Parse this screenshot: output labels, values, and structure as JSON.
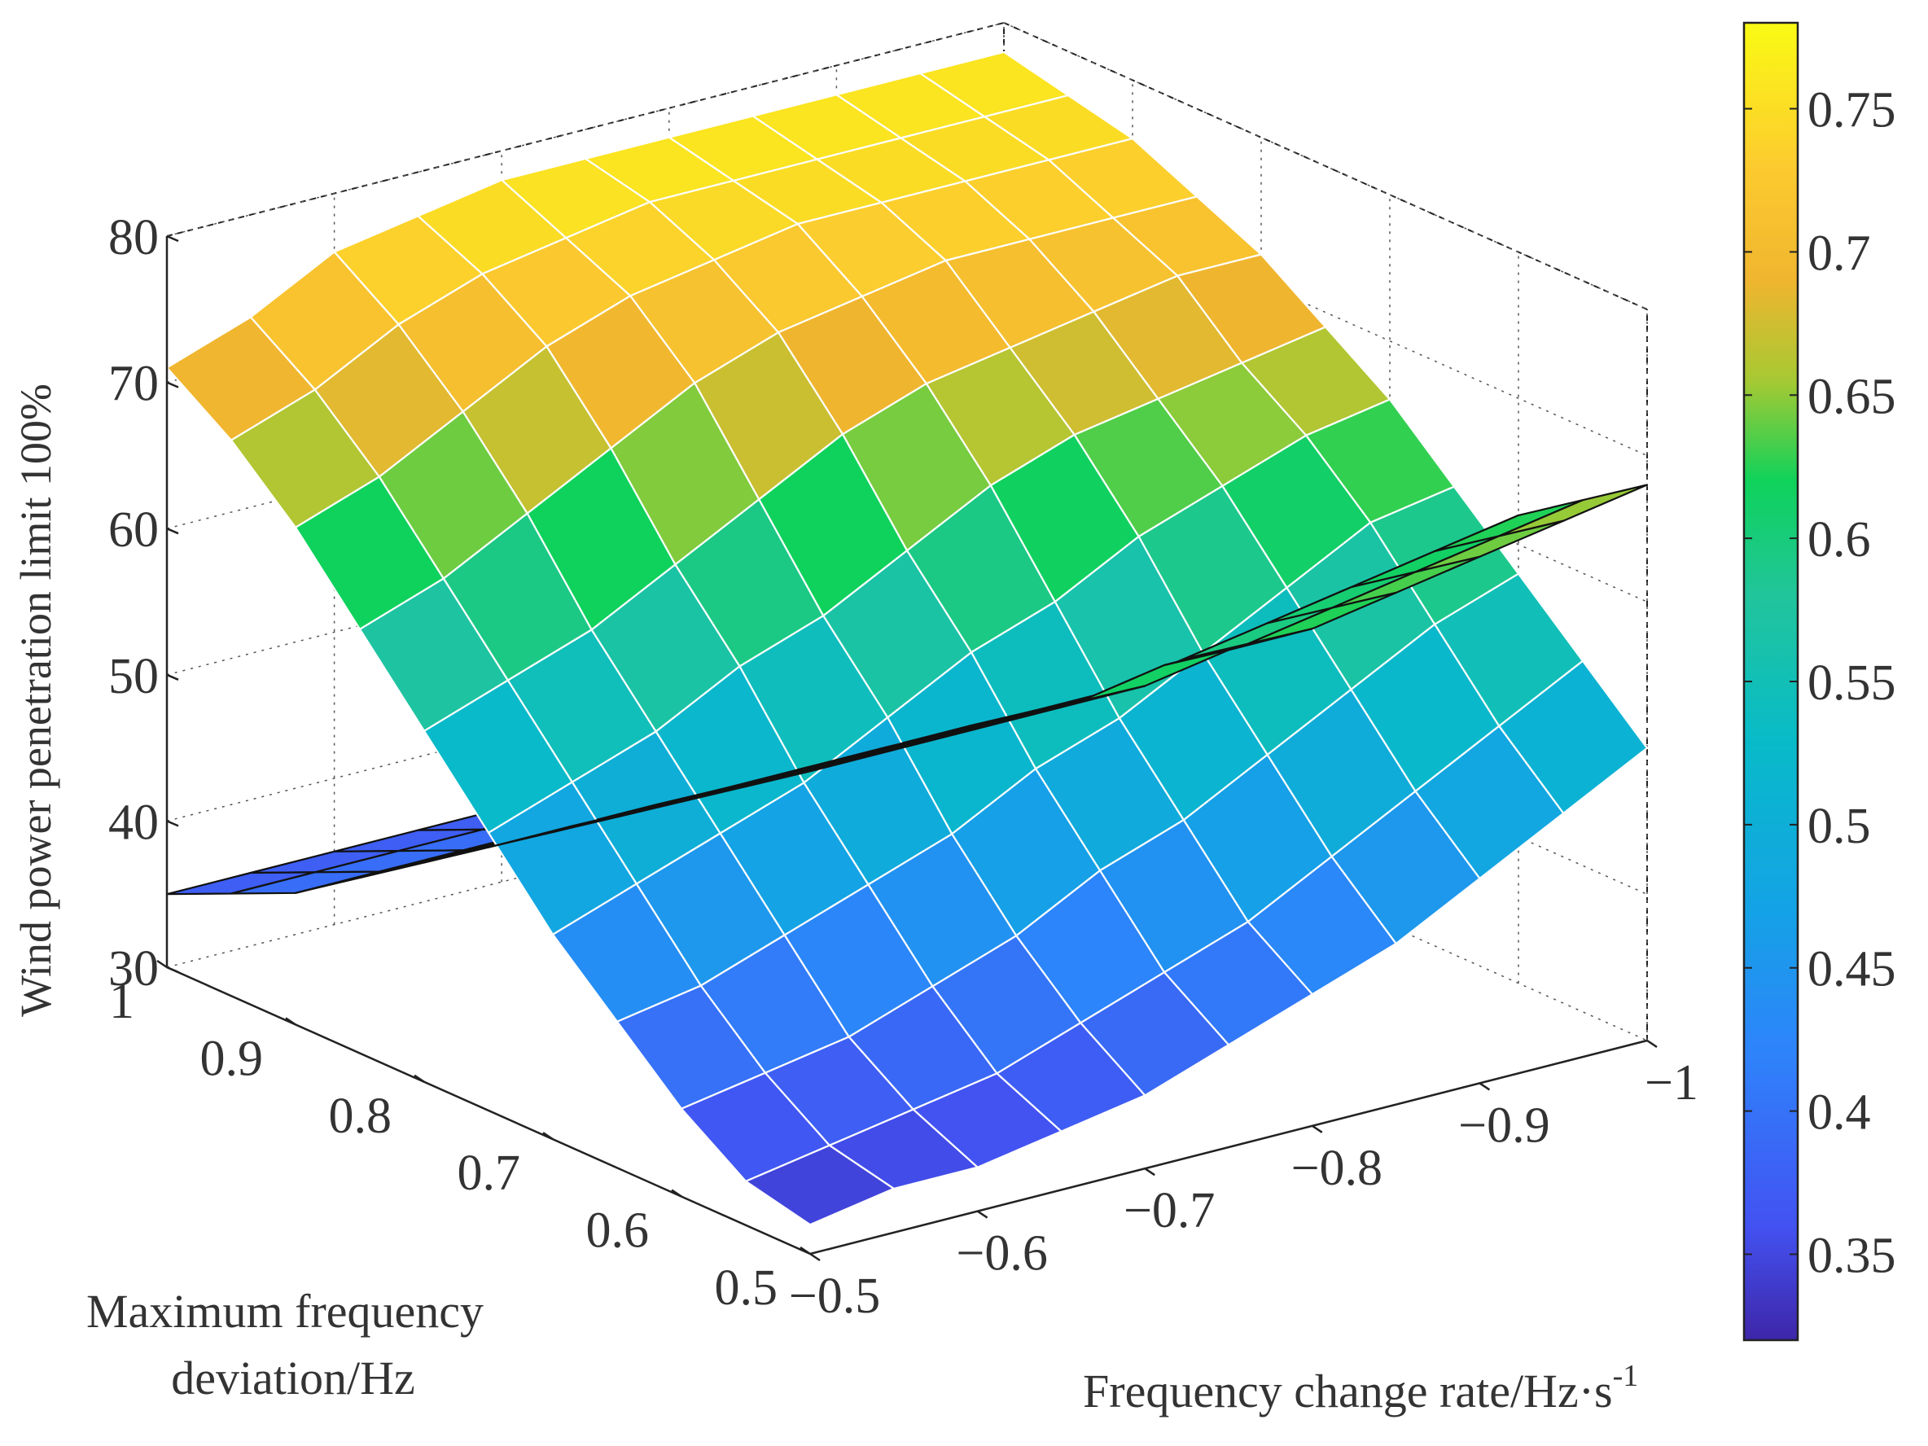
{
  "chart_data": [
    {
      "type": "surface3d",
      "name": "upper-surface",
      "description_series": "upper surface (white/black grid)",
      "x_values": [
        -1,
        -0.95,
        -0.9,
        -0.85,
        -0.8,
        -0.75,
        -0.7,
        -0.65,
        -0.6,
        -0.55,
        -0.5
      ],
      "y_values": [
        1,
        0.95,
        0.9,
        0.85,
        0.8,
        0.75,
        0.7,
        0.65,
        0.6,
        0.55,
        0.5
      ],
      "z_rows": [
        [
          78,
          78,
          78,
          78,
          78,
          78,
          78,
          77,
          76,
          73,
          71
        ],
        [
          77,
          77,
          77,
          77,
          77,
          77,
          76,
          75,
          73,
          70,
          68
        ],
        [
          76,
          76,
          76,
          76,
          76,
          75,
          74,
          72,
          69,
          66,
          64
        ],
        [
          74,
          74,
          74,
          74,
          73,
          72,
          70,
          67,
          64,
          61,
          59
        ],
        [
          72,
          72,
          71,
          70,
          69,
          67,
          64,
          61,
          58,
          56,
          54
        ],
        [
          69,
          68,
          67,
          66,
          64,
          61,
          58,
          56,
          53,
          51,
          49
        ],
        [
          66,
          65,
          63,
          61,
          58,
          56,
          53,
          50,
          48,
          46,
          44
        ],
        [
          62,
          61,
          58,
          55,
          52,
          50,
          47,
          45,
          43,
          41,
          40
        ],
        [
          58,
          56,
          53,
          50,
          47,
          45,
          42,
          40,
          38,
          37,
          36
        ],
        [
          54,
          51,
          48,
          45,
          42,
          40,
          38,
          36,
          35,
          34,
          33
        ],
        [
          50,
          47,
          44,
          41,
          39,
          37,
          35,
          34,
          33,
          33,
          32
        ]
      ]
    },
    {
      "type": "surface3d",
      "name": "lower-surface",
      "x_values": [
        -1,
        -0.95,
        -0.9,
        -0.85,
        -0.8,
        -0.75,
        -0.7,
        -0.65,
        -0.6,
        -0.55,
        -0.5
      ],
      "y_values": [
        1,
        0.95,
        0.9,
        0.85,
        0.8,
        0.75,
        0.7,
        0.65,
        0.6,
        0.55,
        0.5
      ],
      "z_rows": [
        [
          37,
          36,
          36,
          35,
          35,
          35,
          35,
          35,
          35,
          35,
          35
        ],
        [
          39,
          38,
          37,
          37,
          37,
          37,
          37,
          37,
          37,
          37,
          37
        ],
        [
          42,
          41,
          40,
          40,
          39,
          39,
          39,
          39,
          39,
          39,
          39
        ],
        [
          45,
          44,
          43,
          42,
          42,
          42,
          42,
          42,
          42,
          42,
          42
        ],
        [
          48,
          47,
          46,
          45,
          45,
          45,
          45,
          45,
          45,
          45,
          45
        ],
        [
          51,
          50,
          49,
          48,
          48,
          48,
          48,
          48,
          48,
          48,
          48
        ],
        [
          55,
          54,
          53,
          52,
          51,
          51,
          51,
          51,
          51,
          51,
          51
        ],
        [
          58,
          57,
          56,
          55,
          54,
          54,
          54,
          54,
          54,
          54,
          54
        ],
        [
          62,
          61,
          60,
          59,
          58,
          57,
          57,
          57,
          57,
          57,
          57
        ],
        [
          65,
          64,
          63,
          62,
          61,
          61,
          60,
          60,
          60,
          60,
          60
        ],
        [
          68,
          67,
          66,
          65,
          64,
          64,
          63,
          63,
          63,
          63,
          63
        ]
      ]
    }
  ],
  "axes": {
    "x": {
      "label_main": "Frequency change rate/Hz·s",
      "label_sup": "-1",
      "range": [
        -1,
        -0.5
      ],
      "ticks": [
        "−1",
        "−0.9",
        "−0.8",
        "−0.7",
        "−0.6",
        "−0.5"
      ],
      "tick_values": [
        -1,
        -0.9,
        -0.8,
        -0.7,
        -0.6,
        -0.5
      ]
    },
    "y": {
      "label_line1": "Maximum frequency",
      "label_line2": "deviation/Hz",
      "range": [
        0.5,
        1
      ],
      "ticks": [
        "1",
        "0.9",
        "0.8",
        "0.7",
        "0.6",
        "0.5"
      ],
      "tick_values": [
        1,
        0.9,
        0.8,
        0.7,
        0.6,
        0.5
      ]
    },
    "z": {
      "label": "Wind power penetration limit 100%",
      "range": [
        30,
        80
      ],
      "ticks": [
        "30",
        "40",
        "50",
        "60",
        "70",
        "80"
      ],
      "tick_values": [
        30,
        40,
        50,
        60,
        70,
        80
      ]
    }
  },
  "colorbar": {
    "range": [
      0.32,
      0.78
    ],
    "ticks": [
      "0.35",
      "0.4",
      "0.45",
      "0.5",
      "0.55",
      "0.6",
      "0.65",
      "0.7",
      "0.75"
    ],
    "tick_values": [
      0.35,
      0.4,
      0.45,
      0.5,
      0.55,
      0.6,
      0.65,
      0.7,
      0.75
    ],
    "colormap": [
      {
        "value": 0.32,
        "color": "#3e26a8"
      },
      {
        "value": 0.36,
        "color": "#4352f2"
      },
      {
        "value": 0.42,
        "color": "#2e83fb"
      },
      {
        "value": 0.47,
        "color": "#14a2e6"
      },
      {
        "value": 0.53,
        "color": "#08bbc8"
      },
      {
        "value": 0.58,
        "color": "#21c59b"
      },
      {
        "value": 0.62,
        "color": "#0fd25a"
      },
      {
        "value": 0.655,
        "color": "#a6c933"
      },
      {
        "value": 0.69,
        "color": "#f0b52f"
      },
      {
        "value": 0.73,
        "color": "#fccb2f"
      },
      {
        "value": 0.78,
        "color": "#fafa14"
      }
    ]
  }
}
